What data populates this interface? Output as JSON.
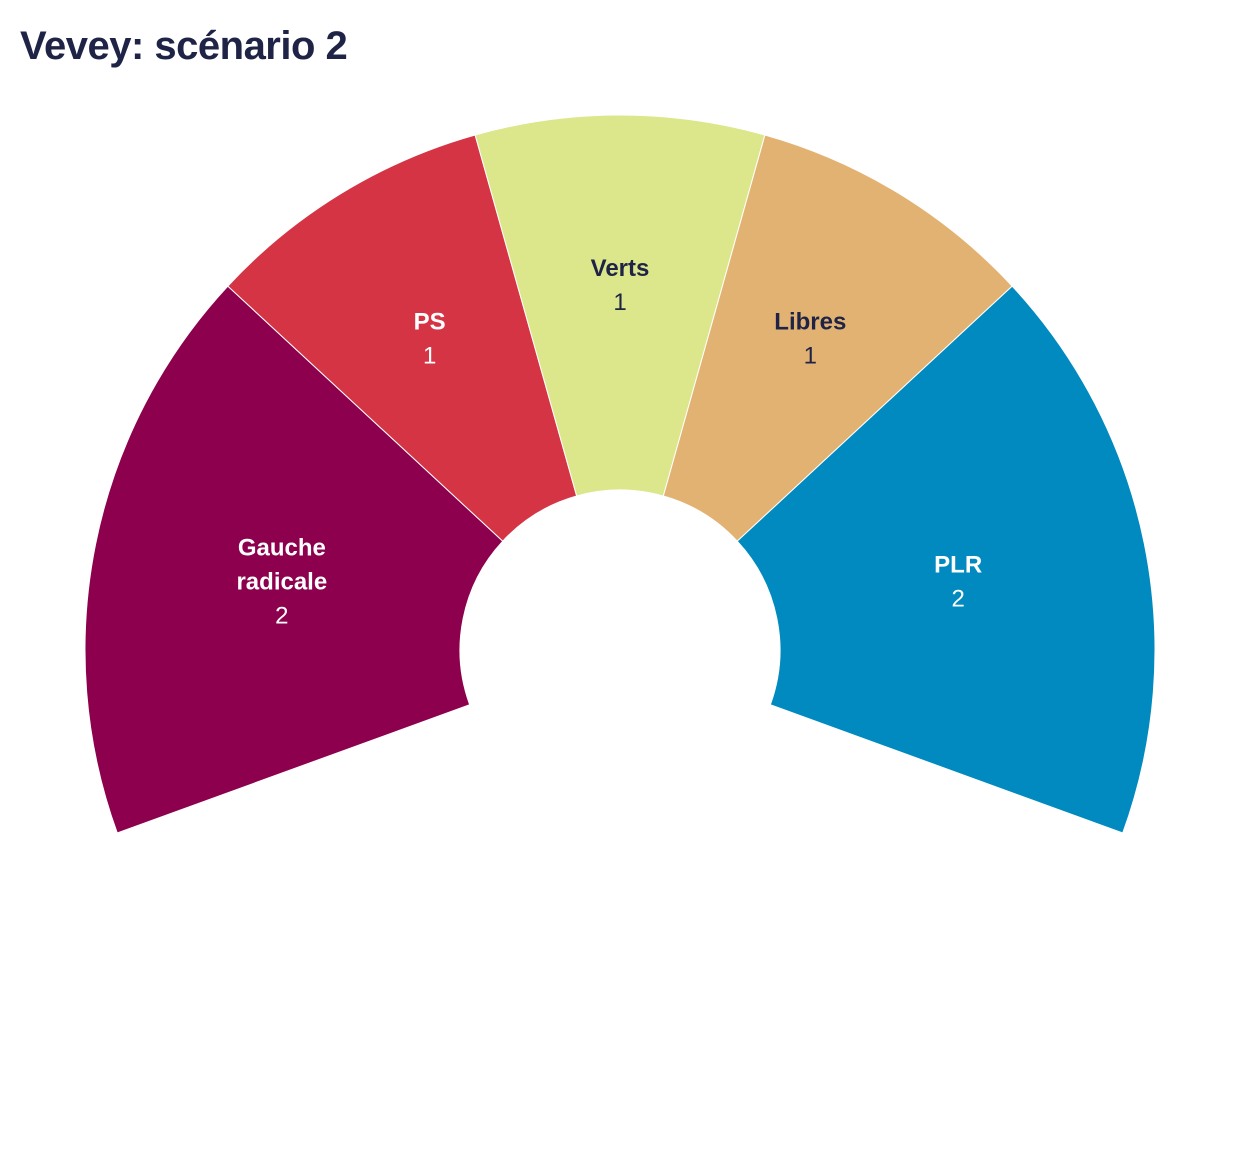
{
  "chart_data": {
    "type": "pie",
    "variant": "parliament-semicircle",
    "title": "Vevey: scénario 2",
    "total_seats": 7,
    "start_angle_deg": -110,
    "end_angle_deg": 110,
    "series": [
      {
        "name": "Gauche radicale",
        "label_lines": [
          "Gauche",
          "radicale"
        ],
        "value": 2,
        "color": "#8c004d",
        "text_color": "#ffffff"
      },
      {
        "name": "PS",
        "label_lines": [
          "PS"
        ],
        "value": 1,
        "color": "#d53444",
        "text_color": "#ffffff"
      },
      {
        "name": "Verts",
        "label_lines": [
          "Verts"
        ],
        "value": 1,
        "color": "#dbe78a",
        "text_color": "#1f2447"
      },
      {
        "name": "Libres",
        "label_lines": [
          "Libres"
        ],
        "value": 1,
        "color": "#e2b272",
        "text_color": "#1f2447"
      },
      {
        "name": "PLR",
        "label_lines": [
          "PLR"
        ],
        "value": 2,
        "color": "#008abf",
        "text_color": "#ffffff"
      }
    ]
  }
}
